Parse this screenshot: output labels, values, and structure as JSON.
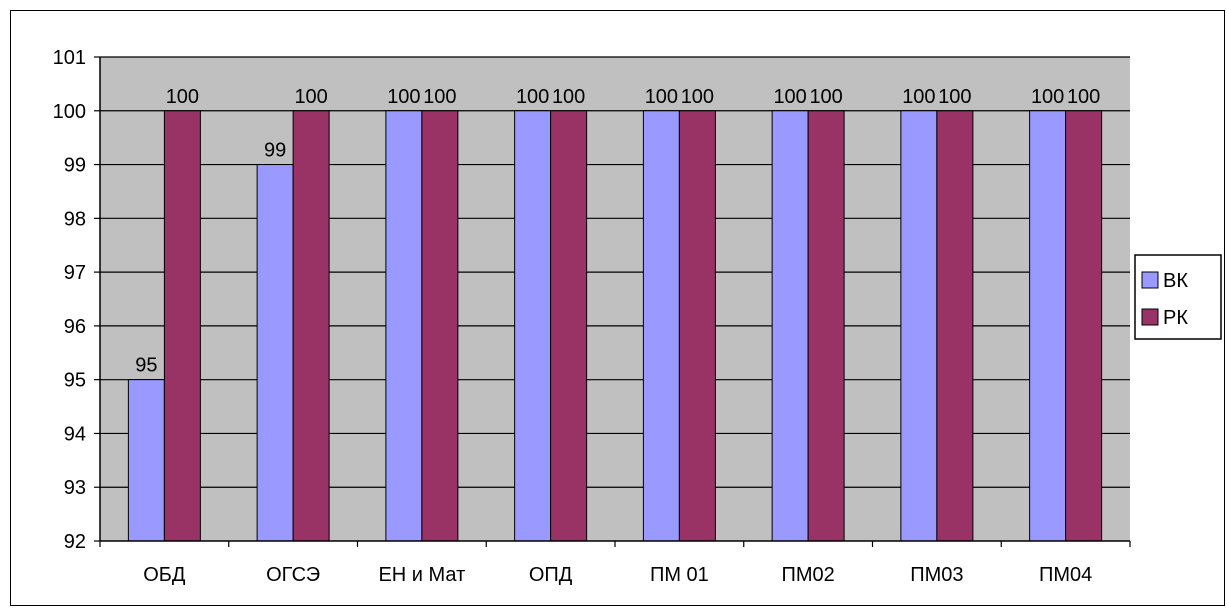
{
  "chart_data": {
    "type": "bar",
    "categories": [
      "ОБД",
      "ОГСЭ",
      "ЕН и Мат",
      "ОПД",
      "ПМ 01",
      "ПМ02",
      "ПМ03",
      "ПМ04"
    ],
    "series": [
      {
        "name": "ВК",
        "values": [
          95,
          99,
          100,
          100,
          100,
          100,
          100,
          100
        ],
        "color": "#9999ff"
      },
      {
        "name": "РК",
        "values": [
          100,
          100,
          100,
          100,
          100,
          100,
          100,
          100
        ],
        "color": "#993366"
      }
    ],
    "data_labels": [
      [
        "95",
        "99",
        "100",
        "100",
        "100",
        "100",
        "100",
        "100"
      ],
      [
        "100",
        "100",
        "100",
        "100",
        "100",
        "100",
        "100",
        "100"
      ]
    ],
    "y_ticks": [
      "92",
      "93",
      "94",
      "95",
      "96",
      "97",
      "98",
      "99",
      "100",
      "101"
    ],
    "ylim": [
      92,
      101
    ],
    "title": "",
    "xlabel": "",
    "ylabel": "",
    "grid": true,
    "legend": "right",
    "plot_background": "#c0c0c0"
  }
}
